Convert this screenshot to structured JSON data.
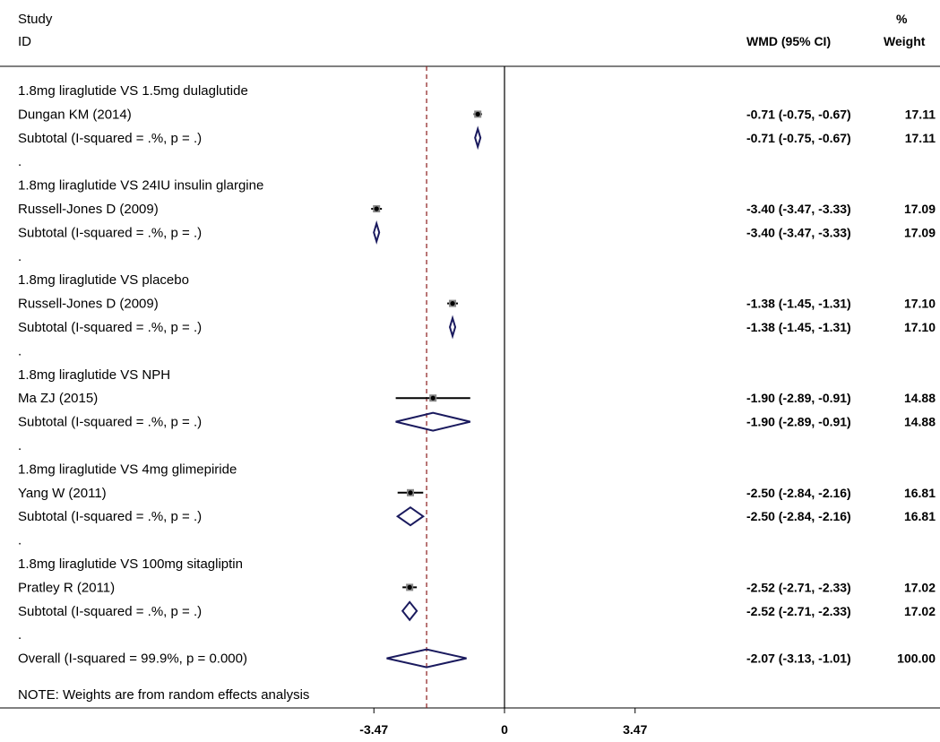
{
  "header": {
    "study": "Study",
    "id": "ID",
    "wmd": "WMD (95% CI)",
    "pct": "%",
    "weight": "Weight"
  },
  "note": "NOTE: Weights are from random effects analysis",
  "colors": {
    "diamond": "#1a1a5e",
    "line": "#000000",
    "ref": "#8b1a1a",
    "box": "#888888"
  },
  "chart_data": {
    "type": "forest",
    "x_ticks": [
      -3.47,
      0,
      3.47
    ],
    "x_tick_labels": [
      "-3.47",
      "0",
      "3.47"
    ],
    "xlim": [
      -6.2,
      6.8
    ],
    "null_line": 0,
    "overall_line": -2.07,
    "rows": [
      {
        "kind": "group",
        "label": "1.8mg liraglutide VS 1.5mg dulaglutide"
      },
      {
        "kind": "study",
        "label": "Dungan KM (2014)",
        "est": -0.71,
        "lo": -0.75,
        "hi": -0.67,
        "weight": 17.11,
        "ci_text": "-0.71 (-0.75, -0.67)",
        "w_text": "17.11"
      },
      {
        "kind": "subtotal",
        "label": "Subtotal  (I-squared = .%, p = .)",
        "est": -0.71,
        "lo": -0.75,
        "hi": -0.67,
        "ci_text": "-0.71 (-0.75, -0.67)",
        "w_text": "17.11"
      },
      {
        "kind": "sep",
        "label": "."
      },
      {
        "kind": "group",
        "label": "1.8mg liraglutide VS 24IU insulin glargine"
      },
      {
        "kind": "study",
        "label": "Russell-Jones D (2009)",
        "est": -3.4,
        "lo": -3.47,
        "hi": -3.33,
        "weight": 17.09,
        "ci_text": "-3.40 (-3.47, -3.33)",
        "w_text": "17.09"
      },
      {
        "kind": "subtotal",
        "label": "Subtotal  (I-squared = .%, p = .)",
        "est": -3.4,
        "lo": -3.47,
        "hi": -3.33,
        "ci_text": "-3.40 (-3.47, -3.33)",
        "w_text": "17.09"
      },
      {
        "kind": "sep",
        "label": "."
      },
      {
        "kind": "group",
        "label": "1.8mg liraglutide VS placebo"
      },
      {
        "kind": "study",
        "label": "Russell-Jones D (2009)",
        "est": -1.38,
        "lo": -1.45,
        "hi": -1.31,
        "weight": 17.1,
        "ci_text": "-1.38 (-1.45, -1.31)",
        "w_text": "17.10"
      },
      {
        "kind": "subtotal",
        "label": "Subtotal  (I-squared = .%, p = .)",
        "est": -1.38,
        "lo": -1.45,
        "hi": -1.31,
        "ci_text": "-1.38 (-1.45, -1.31)",
        "w_text": "17.10"
      },
      {
        "kind": "sep",
        "label": "."
      },
      {
        "kind": "group",
        "label": "1.8mg liraglutide VS NPH"
      },
      {
        "kind": "study",
        "label": "Ma ZJ (2015)",
        "est": -1.9,
        "lo": -2.89,
        "hi": -0.91,
        "weight": 14.88,
        "ci_text": "-1.90 (-2.89, -0.91)",
        "w_text": "14.88"
      },
      {
        "kind": "subtotal",
        "label": "Subtotal  (I-squared = .%, p = .)",
        "est": -1.9,
        "lo": -2.89,
        "hi": -0.91,
        "ci_text": "-1.90 (-2.89, -0.91)",
        "w_text": "14.88"
      },
      {
        "kind": "sep",
        "label": "."
      },
      {
        "kind": "group",
        "label": "1.8mg liraglutide VS 4mg glimepiride"
      },
      {
        "kind": "study",
        "label": "Yang W (2011)",
        "est": -2.5,
        "lo": -2.84,
        "hi": -2.16,
        "weight": 16.81,
        "ci_text": "-2.50 (-2.84, -2.16)",
        "w_text": "16.81"
      },
      {
        "kind": "subtotal",
        "label": "Subtotal  (I-squared = .%, p = .)",
        "est": -2.5,
        "lo": -2.84,
        "hi": -2.16,
        "ci_text": "-2.50 (-2.84, -2.16)",
        "w_text": "16.81"
      },
      {
        "kind": "sep",
        "label": "."
      },
      {
        "kind": "group",
        "label": "1.8mg liraglutide VS 100mg sitagliptin"
      },
      {
        "kind": "study",
        "label": "Pratley R (2011)",
        "est": -2.52,
        "lo": -2.71,
        "hi": -2.33,
        "weight": 17.02,
        "ci_text": "-2.52 (-2.71, -2.33)",
        "w_text": "17.02"
      },
      {
        "kind": "subtotal",
        "label": "Subtotal  (I-squared = .%, p = .)",
        "est": -2.52,
        "lo": -2.71,
        "hi": -2.33,
        "ci_text": "-2.52 (-2.71, -2.33)",
        "w_text": "17.02"
      },
      {
        "kind": "sep",
        "label": "."
      },
      {
        "kind": "overall",
        "label": "Overall  (I-squared = 99.9%, p = 0.000)",
        "est": -2.07,
        "lo": -3.13,
        "hi": -1.01,
        "ci_text": "-2.07 (-3.13, -1.01)",
        "w_text": "100.00"
      }
    ]
  }
}
